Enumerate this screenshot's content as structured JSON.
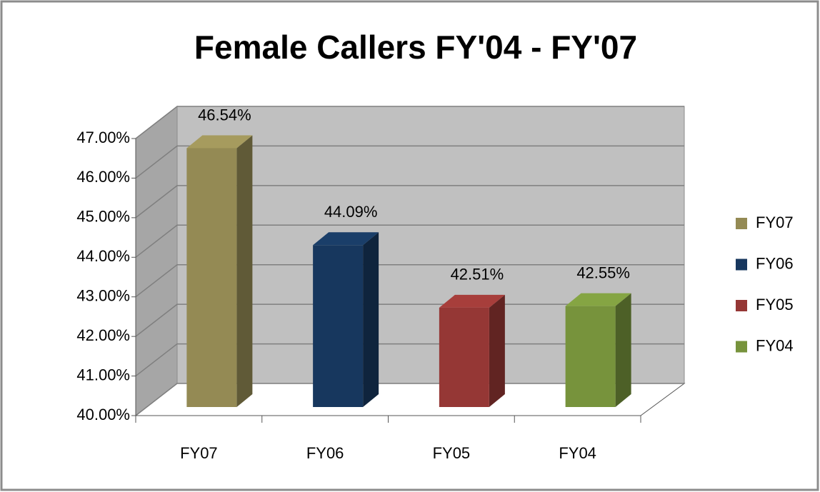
{
  "chart_data": {
    "type": "bar3d",
    "title": "Female Callers FY'04 - FY'07",
    "categories": [
      "FY07",
      "FY06",
      "FY05",
      "FY04"
    ],
    "values": [
      46.54,
      44.09,
      42.51,
      42.55
    ],
    "value_labels": [
      "46.54%",
      "44.09%",
      "42.51%",
      "42.55%"
    ],
    "colors": [
      "#948a54",
      "#17375e",
      "#953735",
      "#77933c"
    ],
    "ylim": [
      40,
      47
    ],
    "yticks": [
      {
        "value": 40,
        "label": "40.00%"
      },
      {
        "value": 41,
        "label": "41.00%"
      },
      {
        "value": 42,
        "label": "42.00%"
      },
      {
        "value": 43,
        "label": "43.00%"
      },
      {
        "value": 44,
        "label": "44.00%"
      },
      {
        "value": 45,
        "label": "45.00%"
      },
      {
        "value": 46,
        "label": "46.00%"
      },
      {
        "value": 47,
        "label": "47.00%"
      }
    ],
    "grid": true,
    "legend": "right"
  }
}
